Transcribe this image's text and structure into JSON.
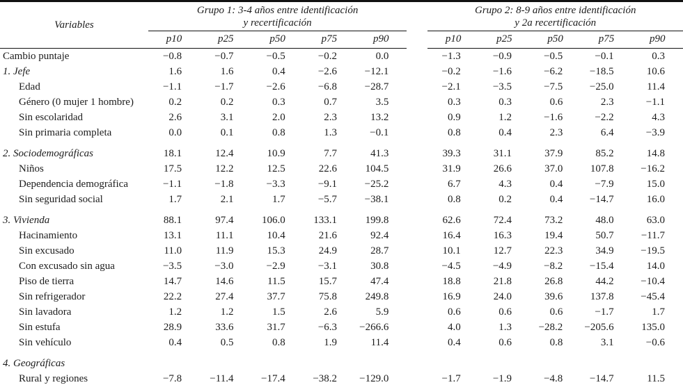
{
  "table": {
    "variables_header": "Variables",
    "group1": {
      "title_line1": "Grupo 1: 3-4 años entre identificación",
      "title_line2": "y recertificación",
      "columns": [
        "p10",
        "p25",
        "p50",
        "p75",
        "p90"
      ]
    },
    "group2": {
      "title_line1": "Grupo 2: 8-9 años entre identificación",
      "title_line2": "y 2a recertificación",
      "columns": [
        "p10",
        "p25",
        "p50",
        "p75",
        "p90"
      ]
    },
    "rows": [
      {
        "label": "Cambio puntaje",
        "style": "plain",
        "gap": false,
        "g1": [
          "−0.8",
          "−0.7",
          "−0.5",
          "−0.2",
          "0.0"
        ],
        "g2": [
          "−1.3",
          "−0.9",
          "−0.5",
          "−0.1",
          "0.3"
        ]
      },
      {
        "label": "1. Jefe",
        "style": "section",
        "gap": false,
        "g1": [
          "1.6",
          "1.6",
          "0.4",
          "−2.6",
          "−12.1"
        ],
        "g2": [
          "−0.2",
          "−1.6",
          "−6.2",
          "−18.5",
          "10.6"
        ]
      },
      {
        "label": "Edad",
        "style": "sub",
        "gap": false,
        "g1": [
          "−1.1",
          "−1.7",
          "−2.6",
          "−6.8",
          "−28.7"
        ],
        "g2": [
          "−2.1",
          "−3.5",
          "−7.5",
          "−25.0",
          "11.4"
        ]
      },
      {
        "label": "Género (0 mujer 1 hombre)",
        "style": "sub",
        "gap": false,
        "g1": [
          "0.2",
          "0.2",
          "0.3",
          "0.7",
          "3.5"
        ],
        "g2": [
          "0.3",
          "0.3",
          "0.6",
          "2.3",
          "−1.1"
        ]
      },
      {
        "label": "Sin escolaridad",
        "style": "sub",
        "gap": false,
        "g1": [
          "2.6",
          "3.1",
          "2.0",
          "2.3",
          "13.2"
        ],
        "g2": [
          "0.9",
          "1.2",
          "−1.6",
          "−2.2",
          "4.3"
        ]
      },
      {
        "label": "Sin primaria completa",
        "style": "sub",
        "gap": false,
        "g1": [
          "0.0",
          "0.1",
          "0.8",
          "1.3",
          "−0.1"
        ],
        "g2": [
          "0.8",
          "0.4",
          "2.3",
          "6.4",
          "−3.9"
        ]
      },
      {
        "label": "2. Sociodemográficas",
        "style": "section",
        "gap": true,
        "g1": [
          "18.1",
          "12.4",
          "10.9",
          "7.7",
          "41.3"
        ],
        "g2": [
          "39.3",
          "31.1",
          "37.9",
          "85.2",
          "14.8"
        ]
      },
      {
        "label": "Niños",
        "style": "sub",
        "gap": false,
        "g1": [
          "17.5",
          "12.2",
          "12.5",
          "22.6",
          "104.5"
        ],
        "g2": [
          "31.9",
          "26.6",
          "37.0",
          "107.8",
          "−16.2"
        ]
      },
      {
        "label": "Dependencia demográfica",
        "style": "sub",
        "gap": false,
        "g1": [
          "−1.1",
          "−1.8",
          "−3.3",
          "−9.1",
          "−25.2"
        ],
        "g2": [
          "6.7",
          "4.3",
          "0.4",
          "−7.9",
          "15.0"
        ]
      },
      {
        "label": "Sin seguridad social",
        "style": "sub",
        "gap": false,
        "g1": [
          "1.7",
          "2.1",
          "1.7",
          "−5.7",
          "−38.1"
        ],
        "g2": [
          "0.8",
          "0.2",
          "0.4",
          "−14.7",
          "16.0"
        ]
      },
      {
        "label": "3. Vivienda",
        "style": "section",
        "gap": true,
        "g1": [
          "88.1",
          "97.4",
          "106.0",
          "133.1",
          "199.8"
        ],
        "g2": [
          "62.6",
          "72.4",
          "73.2",
          "48.0",
          "63.0"
        ]
      },
      {
        "label": "Hacinamiento",
        "style": "sub",
        "gap": false,
        "g1": [
          "13.1",
          "11.1",
          "10.4",
          "21.6",
          "92.4"
        ],
        "g2": [
          "16.4",
          "16.3",
          "19.4",
          "50.7",
          "−11.7"
        ]
      },
      {
        "label": "Sin excusado",
        "style": "sub",
        "gap": false,
        "g1": [
          "11.0",
          "11.9",
          "15.3",
          "24.9",
          "28.7"
        ],
        "g2": [
          "10.1",
          "12.7",
          "22.3",
          "34.9",
          "−19.5"
        ]
      },
      {
        "label": "Con excusado sin agua",
        "style": "sub",
        "gap": false,
        "g1": [
          "−3.5",
          "−3.0",
          "−2.9",
          "−3.1",
          "30.8"
        ],
        "g2": [
          "−4.5",
          "−4.9",
          "−8.2",
          "−15.4",
          "14.0"
        ]
      },
      {
        "label": "Piso de tierra",
        "style": "sub",
        "gap": false,
        "g1": [
          "14.7",
          "14.6",
          "11.5",
          "15.7",
          "47.4"
        ],
        "g2": [
          "18.8",
          "21.8",
          "26.8",
          "44.2",
          "−10.4"
        ]
      },
      {
        "label": "Sin refrigerador",
        "style": "sub",
        "gap": false,
        "g1": [
          "22.2",
          "27.4",
          "37.7",
          "75.8",
          "249.8"
        ],
        "g2": [
          "16.9",
          "24.0",
          "39.6",
          "137.8",
          "−45.4"
        ]
      },
      {
        "label": "Sin lavadora",
        "style": "sub",
        "gap": false,
        "g1": [
          "1.2",
          "1.2",
          "1.5",
          "2.6",
          "5.9"
        ],
        "g2": [
          "0.6",
          "0.6",
          "0.6",
          "−1.7",
          "1.7"
        ]
      },
      {
        "label": "Sin estufa",
        "style": "sub",
        "gap": false,
        "g1": [
          "28.9",
          "33.6",
          "31.7",
          "−6.3",
          "−266.6"
        ],
        "g2": [
          "4.0",
          "1.3",
          "−28.2",
          "−205.6",
          "135.0"
        ]
      },
      {
        "label": "Sin vehículo",
        "style": "sub",
        "gap": false,
        "g1": [
          "0.4",
          "0.5",
          "0.8",
          "1.9",
          "11.4"
        ],
        "g2": [
          "0.4",
          "0.6",
          "0.8",
          "3.1",
          "−0.6"
        ]
      },
      {
        "label": "4. Geográficas",
        "style": "section",
        "gap": true,
        "g1": [
          "",
          "",
          "",
          "",
          ""
        ],
        "g2": [
          "",
          "",
          "",
          "",
          ""
        ]
      },
      {
        "label": "Rural y regiones",
        "style": "sub",
        "gap": false,
        "g1": [
          "−7.8",
          "−11.4",
          "−17.4",
          "−38.2",
          "−129.0"
        ],
        "g2": [
          "−1.7",
          "−1.9",
          "−4.8",
          "−14.7",
          "11.5"
        ]
      }
    ]
  }
}
